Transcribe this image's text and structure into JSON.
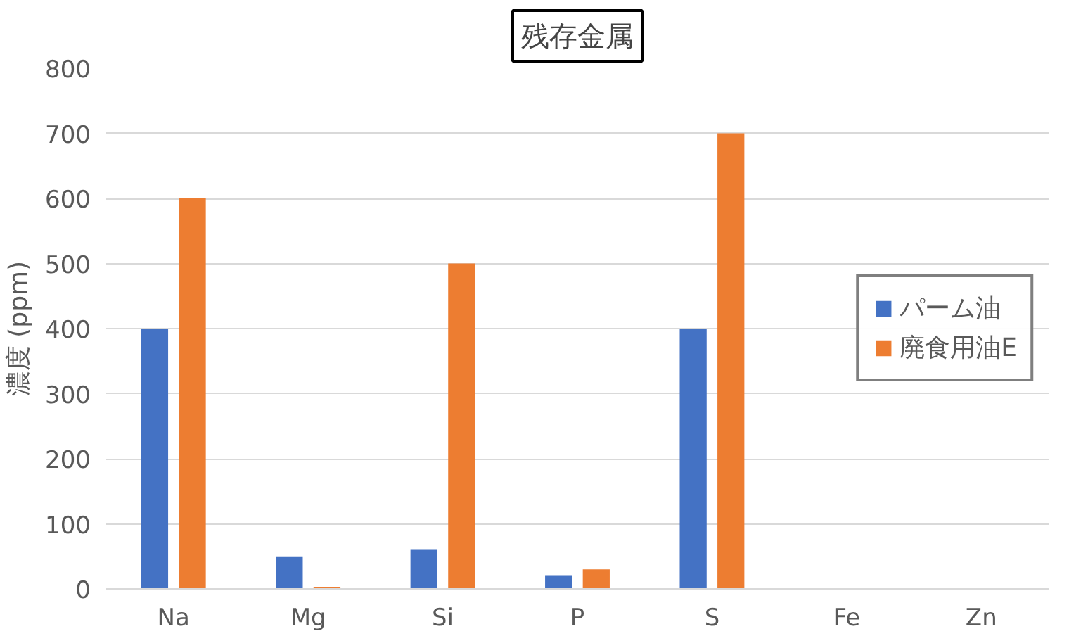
{
  "chart_data": {
    "type": "bar",
    "title": "残存金属",
    "ylabel": "濃度 (ppm)",
    "categories": [
      "Na",
      "Mg",
      "Si",
      "P",
      "S",
      "Fe",
      "Zn"
    ],
    "series": [
      {
        "name": "パーム油",
        "color": "#4472c4",
        "values": [
          400,
          50,
          60,
          20,
          400,
          0,
          0
        ]
      },
      {
        "name": "廃食用油E",
        "color": "#ed7d31",
        "values": [
          600,
          3,
          500,
          30,
          700,
          0,
          0
        ]
      }
    ],
    "ylim": [
      0,
      800
    ],
    "yticks": [
      0,
      100,
      200,
      300,
      400,
      500,
      600,
      700,
      800
    ],
    "grid": "y",
    "legend": "right"
  }
}
